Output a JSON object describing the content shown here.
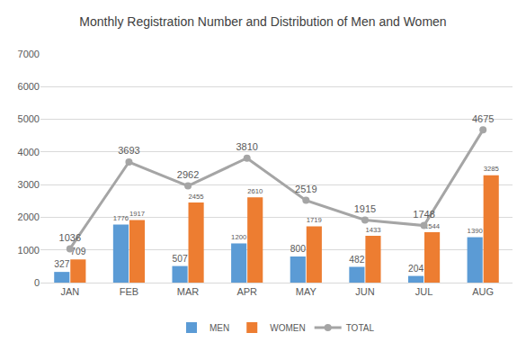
{
  "chart_data": {
    "type": "bar",
    "title": "Monthly Registration Number and Distribution of Men and Women",
    "categories": [
      "JAN",
      "FEB",
      "MAR",
      "APR",
      "MAY",
      "JUN",
      "JUL",
      "AUG"
    ],
    "series": [
      {
        "name": "MEN",
        "type": "bar",
        "color": "#5b9bd5",
        "values": [
          327,
          1776,
          507,
          1200,
          800,
          482,
          204,
          1390
        ]
      },
      {
        "name": "WOMEN",
        "type": "bar",
        "color": "#ed7d31",
        "values": [
          709,
          1917,
          2455,
          2610,
          1719,
          1433,
          1544,
          3285
        ]
      },
      {
        "name": "TOTAL",
        "type": "line",
        "color": "#a5a5a5",
        "marker": "circle",
        "values": [
          1036,
          3693,
          2962,
          3810,
          2519,
          1915,
          1748,
          4675
        ]
      }
    ],
    "ylim": [
      0,
      7000
    ],
    "yticks": [
      0,
      1000,
      2000,
      3000,
      4000,
      5000,
      6000,
      7000
    ],
    "grid": true,
    "data_labels": true,
    "legend": "bottom"
  }
}
